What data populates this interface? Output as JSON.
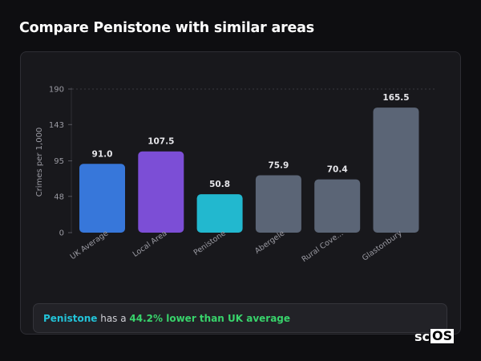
{
  "header": {
    "title": "Compare Penistone with similar areas"
  },
  "chart_data": {
    "type": "bar",
    "ylabel": "Crimes per 1,000",
    "xlabel": "",
    "ylim": [
      0,
      190
    ],
    "yticks": [
      0,
      48,
      95,
      143,
      190
    ],
    "categories": [
      "UK Average",
      "Local Area",
      "Penistone",
      "Abergele",
      "Rural Cove...",
      "Glastonbury"
    ],
    "values": [
      91.0,
      107.5,
      50.8,
      75.9,
      70.4,
      165.5
    ],
    "value_labels": [
      "91.0",
      "107.5",
      "50.8",
      "75.9",
      "70.4",
      "165.5"
    ],
    "colors": [
      "#3777da",
      "#7c4ed6",
      "#22b8cf",
      "#5b6576",
      "#5b6576",
      "#5b6576"
    ],
    "grid": "top-only",
    "legend": "none"
  },
  "callout": {
    "area": "Penistone",
    "middle": " has a ",
    "highlight": "44.2% lower than UK average"
  },
  "brand": {
    "prefix": "sc",
    "boxed": "OS"
  }
}
